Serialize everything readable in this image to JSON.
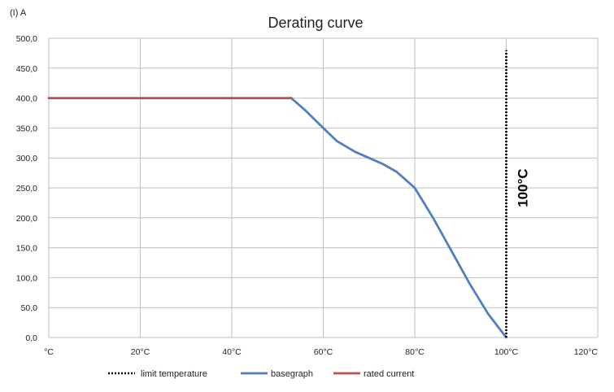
{
  "chart_data": {
    "type": "line",
    "title": "Derating curve",
    "ylabel": "(I) A",
    "xlabel": "",
    "x_tick_labels": [
      "°C",
      "20°C",
      "40°C",
      "60°C",
      "80°C",
      "100°C",
      "120°C"
    ],
    "x_ticks": [
      0,
      20,
      40,
      60,
      80,
      100,
      120
    ],
    "y_tick_labels": [
      "0,0",
      "50,0",
      "100,0",
      "150,0",
      "200,0",
      "250,0",
      "300,0",
      "350,0",
      "400,0",
      "450,0",
      "500,0"
    ],
    "y_ticks": [
      0,
      50,
      100,
      150,
      200,
      250,
      300,
      350,
      400,
      450,
      500
    ],
    "xlim": [
      0,
      120
    ],
    "ylim": [
      0,
      500
    ],
    "grid": true,
    "legend_position": "bottom",
    "series": [
      {
        "name": "limit temperature",
        "style": "dotted",
        "color": "#000000",
        "x": [
          100,
          100
        ],
        "y": [
          0,
          480
        ]
      },
      {
        "name": "basegraph",
        "style": "solid",
        "color": "#4f7fc0",
        "x": [
          53,
          56,
          60,
          63,
          67,
          70,
          73,
          76,
          80,
          84,
          88,
          92,
          96,
          100
        ],
        "y": [
          400,
          380,
          350,
          328,
          310,
          300,
          290,
          277,
          250,
          200,
          145,
          90,
          40,
          0
        ]
      },
      {
        "name": "rated current",
        "style": "solid",
        "color": "#c0504d",
        "x": [
          0,
          53
        ],
        "y": [
          400,
          400
        ]
      }
    ],
    "annotations": [
      {
        "text": "100°C",
        "x": 100,
        "y": 250,
        "rotation": -90,
        "bold": true
      }
    ]
  }
}
